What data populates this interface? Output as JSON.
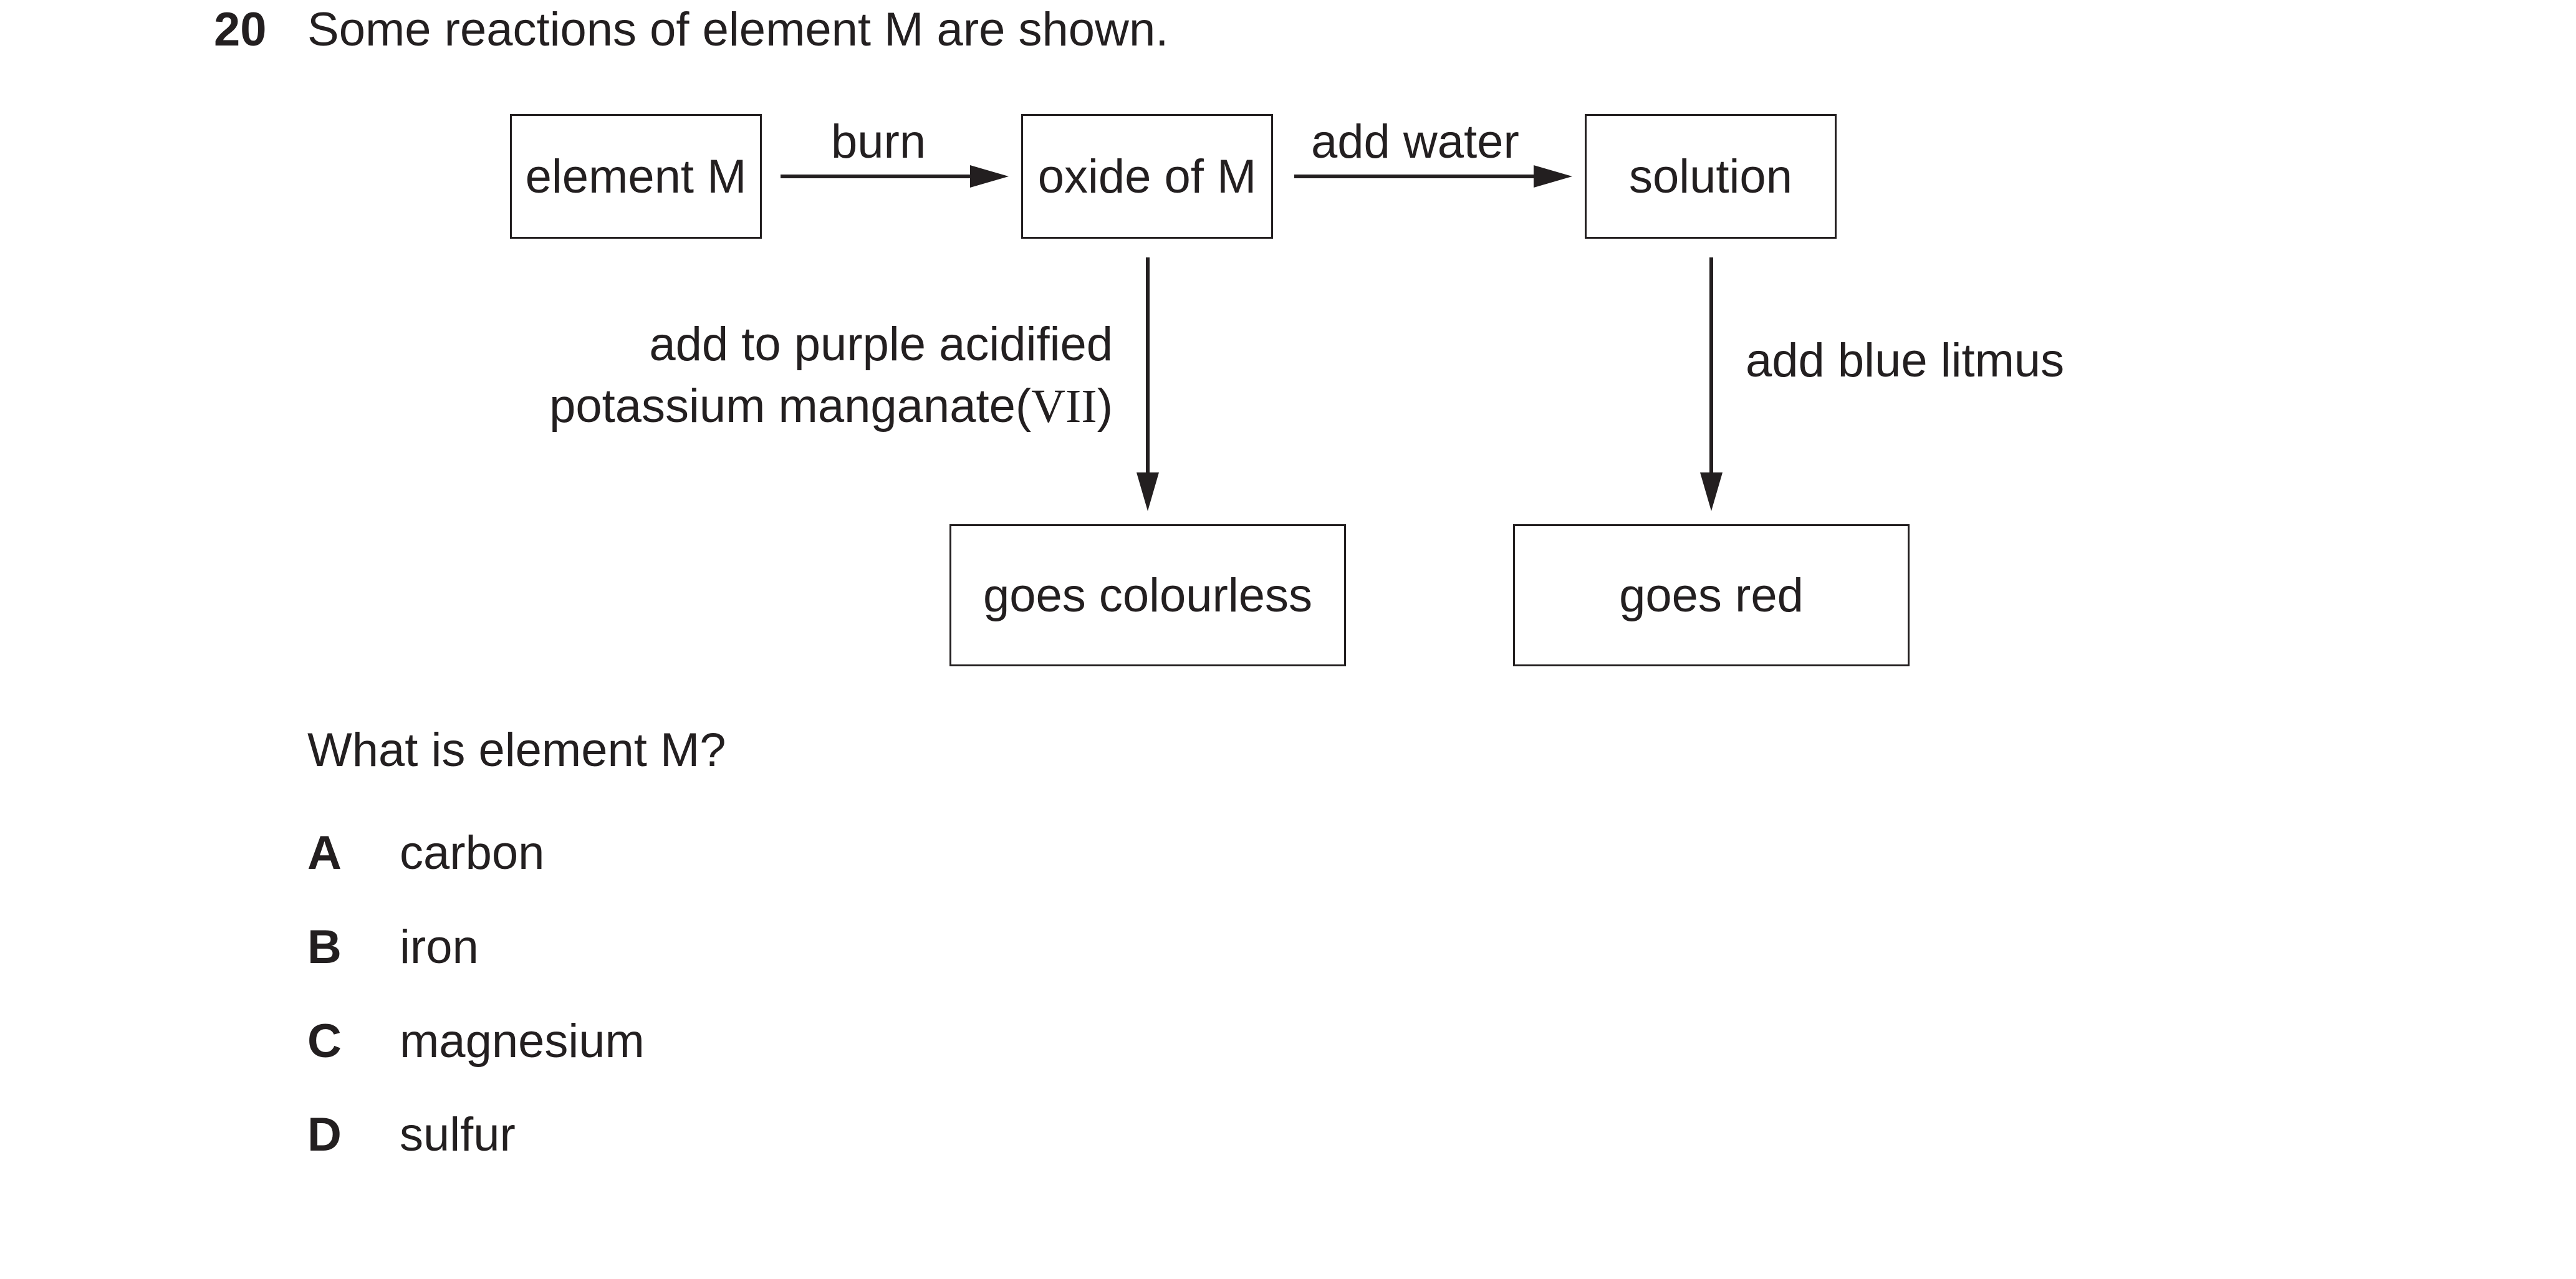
{
  "question": {
    "number": "20",
    "stem": "Some reactions of element M are shown.",
    "prompt": "What is element M?"
  },
  "diagram": {
    "boxes": {
      "element": "element M",
      "oxide": "oxide of M",
      "solution": "solution",
      "colourless": "goes colourless",
      "red": "goes red"
    },
    "labels": {
      "burn": "burn",
      "add_water": "add water",
      "kmno4_line1": "add to purple acidified",
      "kmno4_line2_prefix": "potassium manganate(",
      "kmno4_line2_roman": "VII",
      "kmno4_line2_suffix": ")",
      "add_blue_litmus": "add blue litmus"
    }
  },
  "options": [
    {
      "letter": "A",
      "text": "carbon"
    },
    {
      "letter": "B",
      "text": "iron"
    },
    {
      "letter": "C",
      "text": "magnesium"
    },
    {
      "letter": "D",
      "text": "sulfur"
    }
  ]
}
